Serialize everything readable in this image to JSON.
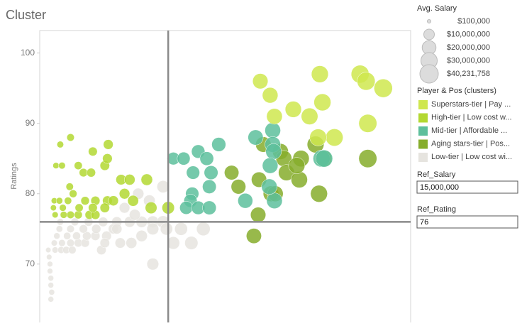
{
  "chart_data": {
    "type": "scatter",
    "title": "Cluster",
    "y_label": "Ratings",
    "xlim": [
      0,
      43300000
    ],
    "ylim": [
      61.7,
      103.2
    ],
    "yticks": [
      70,
      80,
      90,
      100
    ],
    "size_legend": {
      "title": "Avg. Salary",
      "items": [
        {
          "value": 100000,
          "label": "$100,000"
        },
        {
          "value": 10000000,
          "label": "$10,000,000"
        },
        {
          "value": 20000000,
          "label": "$20,000,000"
        },
        {
          "value": 30000000,
          "label": "$30,000,000"
        },
        {
          "value": 40231758,
          "label": "$40,231,758"
        }
      ]
    },
    "color_legend_title": "Player & Pos (clusters)",
    "parameters": [
      {
        "name": "Ref_Salary",
        "value": 15000000,
        "label": "15,000,000"
      },
      {
        "name": "Ref_Rating",
        "value": 76
      }
    ],
    "series": [
      {
        "name": "Superstars-tier | Pay ...",
        "color": "#cfe74f",
        "x": [
          25750000,
          26900000,
          27400000,
          29600000,
          32700000,
          33000000,
          31500000,
          37400000,
          38100000,
          40100000,
          38300000,
          34400000,
          32500000
        ],
        "values": [
          96,
          94,
          91,
          92,
          97,
          93,
          91,
          97,
          96,
          95,
          90,
          88,
          88
        ]
      },
      {
        "name": "High-tier | Low cost w...",
        "color": "#b3d832",
        "x": [
          2400000,
          3600000,
          6200000,
          8000000,
          4500000,
          5100000,
          6000000,
          3500000,
          1700000,
          2300000,
          3300000,
          3900000,
          5300000,
          6500000,
          7900000,
          8600000,
          7600000,
          5800000,
          4500000,
          3600000,
          2800000,
          1800000,
          6500000,
          9500000,
          10500000,
          12500000,
          9900000,
          10900000,
          13000000,
          15000000,
          7600000,
          7900000,
          1900000,
          2600000,
          1600000,
          2700000,
          4600000,
          6200000
        ],
        "values": [
          87,
          88,
          86,
          87,
          84,
          83,
          83,
          81,
          79,
          79,
          79,
          80,
          79,
          79,
          79,
          79,
          78,
          77,
          77,
          77,
          77,
          77,
          77,
          82,
          82,
          82,
          80,
          79,
          78,
          78,
          84,
          85,
          84,
          84,
          78,
          78,
          78,
          78
        ]
      },
      {
        "name": "Mid-tier | Affordable ...",
        "color": "#5dbf9c",
        "x": [
          15600000,
          16800000,
          18500000,
          19500000,
          20900000,
          17900000,
          20000000,
          19800000,
          17800000,
          17600000,
          17100000,
          18500000,
          19800000,
          25200000,
          27200000,
          27200000,
          27300000,
          26900000,
          24000000,
          27400000,
          26800000,
          32900000,
          33200000
        ],
        "values": [
          85,
          85,
          86,
          85,
          87,
          83,
          83,
          81,
          80,
          79,
          78,
          78,
          78,
          88,
          89,
          87,
          86,
          84,
          79,
          79,
          81,
          85,
          85
        ]
      },
      {
        "name": "Aging stars-tier | Pos...",
        "color": "#86ad2c",
        "x": [
          22400000,
          23200000,
          25600000,
          26100000,
          28100000,
          28500000,
          28800000,
          30300000,
          30500000,
          32200000,
          30000000,
          33100000,
          38300000,
          32600000,
          25500000,
          25000000,
          27000000,
          27500000
        ],
        "values": [
          83,
          81,
          82,
          87,
          86,
          85,
          83,
          82,
          85,
          87,
          84,
          85,
          85,
          80,
          77,
          74,
          80,
          80
        ]
      },
      {
        "name": "Low-tier | Low cost wi...",
        "color": "#e6e4df",
        "x": [
          1300000,
          1300000,
          1200000,
          1200000,
          1100000,
          1000000,
          1800000,
          2500000,
          3100000,
          3800000,
          1700000,
          2600000,
          3600000,
          4500000,
          5300000,
          2000000,
          3200000,
          4300000,
          5500000,
          6500000,
          7800000,
          2300000,
          3600000,
          5100000,
          6600000,
          2400000,
          4100000,
          5700000,
          7400000,
          9000000,
          10500000,
          11900000,
          13200000,
          14400000,
          7200000,
          9400000,
          10700000,
          11900000,
          13200000,
          14800000,
          15600000,
          17700000,
          19100000,
          16500000,
          13200000,
          9900000,
          11500000,
          12800000,
          14400000,
          8600000,
          11100000,
          1400000,
          1300000,
          7600000,
          9000000
        ],
        "values": [
          67,
          68,
          69,
          70,
          71,
          72,
          72,
          72,
          72,
          72,
          73,
          73,
          73,
          73,
          73,
          74,
          74,
          74,
          74,
          74,
          74,
          75,
          75,
          75,
          75,
          76,
          76,
          76,
          76,
          76,
          76,
          76,
          76,
          76,
          72,
          73,
          73,
          74,
          75,
          75,
          73,
          73,
          75,
          75,
          70,
          78,
          80,
          79,
          81,
          75,
          77,
          66,
          65,
          73,
          75
        ]
      }
    ]
  }
}
